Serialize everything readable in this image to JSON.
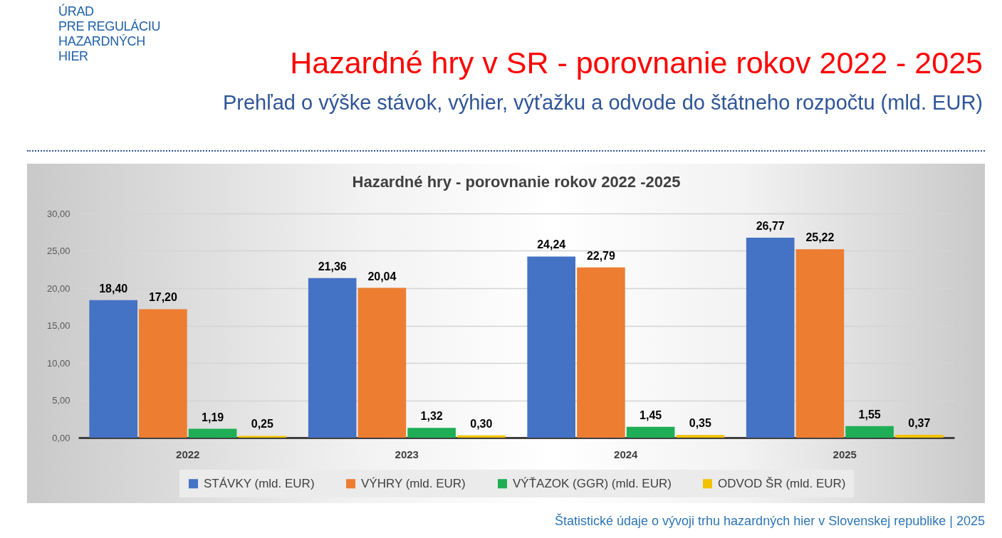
{
  "chart_data": {
    "type": "bar",
    "title": "Hazardné hry v SR - porovnanie rokov 2022 - 2025",
    "subtitle": "Prehľad o výške stávok, výhier, výťažku a odvode do štátneho rozpočtu (mld. EUR)",
    "annotations": [
      "ÚRAD\nPRE REGULÁCIU\nHAZARDNÝCH\nHIER",
      "Hazardné hry - porovnanie rokov 2022 -2025",
      "Štatistické údaje o vývoji trhu hazardných hier v Slovenskej republike | 2025"
    ],
    "categories": [
      "2022",
      "2023",
      "2024",
      "2025"
    ],
    "series": [
      {
        "name": "STÁVKY (mld. EUR)",
        "color": "#4472c4",
        "values": [
          18.4,
          21.36,
          24.24,
          26.77
        ],
        "value_labels": [
          "18,40",
          "21,36",
          "24,24",
          "26,77"
        ]
      },
      {
        "name": "VÝHRY (mld. EUR)",
        "color": "#ed7d31",
        "values": [
          17.2,
          20.04,
          22.79,
          25.22
        ],
        "value_labels": [
          "17,20",
          "20,04",
          "22,79",
          "25,22"
        ]
      },
      {
        "name": "VÝŤAZOK (GGR) (mld. EUR)",
        "color": "#1fae55",
        "values": [
          1.19,
          1.32,
          1.45,
          1.55
        ],
        "value_labels": [
          "1,19",
          "1,32",
          "1,45",
          "1,55"
        ]
      },
      {
        "name": "ODVOD ŠR (mld. EUR)",
        "color": "#f2c100",
        "values": [
          0.25,
          0.3,
          0.35,
          0.37
        ],
        "value_labels": [
          "0,25",
          "0,30",
          "0,35",
          "0,37"
        ]
      }
    ],
    "ylim": [
      0,
      30
    ],
    "yticks": [
      {
        "value": 0,
        "label": "0,00"
      },
      {
        "value": 5,
        "label": "5,00"
      },
      {
        "value": 10,
        "label": "10,00"
      },
      {
        "value": 15,
        "label": "15,00"
      },
      {
        "value": 20,
        "label": "20,00"
      },
      {
        "value": 25,
        "label": "25,00"
      },
      {
        "value": 30,
        "label": "30,00"
      }
    ],
    "grid": "y",
    "legend": "bottom"
  }
}
